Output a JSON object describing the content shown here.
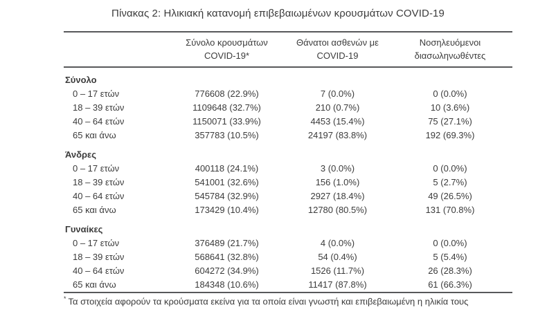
{
  "title": "Πίνακας 2: Ηλικιακή κατανομή επιβεβαιωμένων κρουσμάτων COVID-19",
  "colors": {
    "text": "#3b3b3b",
    "rule": "#57585a",
    "background": "#ffffff"
  },
  "columns": [
    {
      "line1": "",
      "line2": ""
    },
    {
      "line1": "Σύνολο κρουσμάτων",
      "line2": "COVID-19*"
    },
    {
      "line1": "Θάνατοι ασθενών με",
      "line2": "COVID-19"
    },
    {
      "line1": "Νοσηλευόμενοι",
      "line2": "διασωληνωθέντες"
    }
  ],
  "sections": [
    {
      "label": "Σύνολο",
      "rows": [
        {
          "age": "0 – 17 ετών",
          "cases": "776608 (22.9%)",
          "deaths": "7 (0.0%)",
          "intubated": "0 (0.0%)"
        },
        {
          "age": "18 – 39 ετών",
          "cases": "1109648 (32.7%)",
          "deaths": "210 (0.7%)",
          "intubated": "10 (3.6%)"
        },
        {
          "age": "40 – 64 ετών",
          "cases": "1150071 (33.9%)",
          "deaths": "4453 (15.4%)",
          "intubated": "75 (27.1%)"
        },
        {
          "age": "65 και άνω",
          "cases": "357783 (10.5%)",
          "deaths": "24197 (83.8%)",
          "intubated": "192 (69.3%)"
        }
      ]
    },
    {
      "label": "Άνδρες",
      "rows": [
        {
          "age": "0 – 17 ετών",
          "cases": "400118 (24.1%)",
          "deaths": "3 (0.0%)",
          "intubated": "0 (0.0%)"
        },
        {
          "age": "18 – 39 ετών",
          "cases": "541001 (32.6%)",
          "deaths": "156 (1.0%)",
          "intubated": "5 (2.7%)"
        },
        {
          "age": "40 – 64 ετών",
          "cases": "545784 (32.9%)",
          "deaths": "2927 (18.4%)",
          "intubated": "49 (26.5%)"
        },
        {
          "age": "65 και άνω",
          "cases": "173429 (10.4%)",
          "deaths": "12780 (80.5%)",
          "intubated": "131 (70.8%)"
        }
      ]
    },
    {
      "label": "Γυναίκες",
      "rows": [
        {
          "age": "0 – 17 ετών",
          "cases": "376489 (21.7%)",
          "deaths": "4 (0.0%)",
          "intubated": "0 (0.0%)"
        },
        {
          "age": "18 – 39 ετών",
          "cases": "568641 (32.8%)",
          "deaths": "54 (0.4%)",
          "intubated": "5 (5.4%)"
        },
        {
          "age": "40 – 64 ετών",
          "cases": "604272 (34.9%)",
          "deaths": "1526 (11.7%)",
          "intubated": "26 (28.3%)"
        },
        {
          "age": "65 και άνω",
          "cases": "184348 (10.6%)",
          "deaths": "11417 (87.8%)",
          "intubated": "61 (66.3%)"
        }
      ]
    }
  ],
  "footnote": {
    "marker": "*",
    "text": "Τα στοιχεία αφορούν τα κρούσματα εκείνα για τα οποία είναι γνωστή και επιβεβαιωμένη η ηλικία τους"
  }
}
